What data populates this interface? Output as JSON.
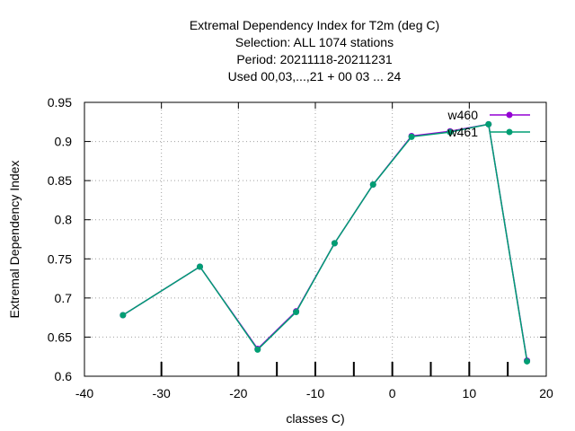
{
  "chart_data": {
    "type": "line",
    "title_lines": [
      "Extremal Dependency Index  for T2m (deg C)",
      "Selection: ALL    1074 stations",
      "Period: 20211118-20211231",
      "Used  00,03,...,21  + 00 03 ... 24"
    ],
    "xlabel": "classes C)",
    "ylabel": "Extremal Dependency Index",
    "xlim": [
      -40,
      20
    ],
    "ylim": [
      0.6,
      0.95
    ],
    "xticks": [
      -40,
      -30,
      -20,
      -10,
      0,
      10,
      20
    ],
    "yticks": [
      0.6,
      0.65,
      0.7,
      0.75,
      0.8,
      0.85,
      0.9,
      0.95
    ],
    "xtick_labels": [
      "-40",
      "-30",
      "-20",
      "-10",
      "0",
      "10",
      "20"
    ],
    "ytick_labels": [
      "0.6",
      "0.65",
      "0.7",
      "0.75",
      "0.8",
      "0.85",
      "0.9",
      "0.95"
    ],
    "bottom_marks": [
      -30,
      -20,
      -15,
      -10,
      -5,
      0,
      5,
      10,
      15
    ],
    "grid": true,
    "legend_position": "top-right",
    "series": [
      {
        "name": "w460",
        "color": "#9400d3",
        "x": [
          -35,
          -25,
          -17.5,
          -12.5,
          -7.5,
          -2.5,
          2.5,
          7.5,
          12.5,
          17.5
        ],
        "y": [
          0.678,
          0.74,
          0.635,
          0.683,
          0.77,
          0.845,
          0.907,
          0.913,
          0.922,
          0.62
        ]
      },
      {
        "name": "w461",
        "color": "#009e73",
        "x": [
          -35,
          -25,
          -17.5,
          -12.5,
          -7.5,
          -2.5,
          2.5,
          7.5,
          12.5,
          17.5
        ],
        "y": [
          0.678,
          0.74,
          0.634,
          0.682,
          0.77,
          0.845,
          0.906,
          0.912,
          0.922,
          0.619
        ]
      }
    ]
  }
}
